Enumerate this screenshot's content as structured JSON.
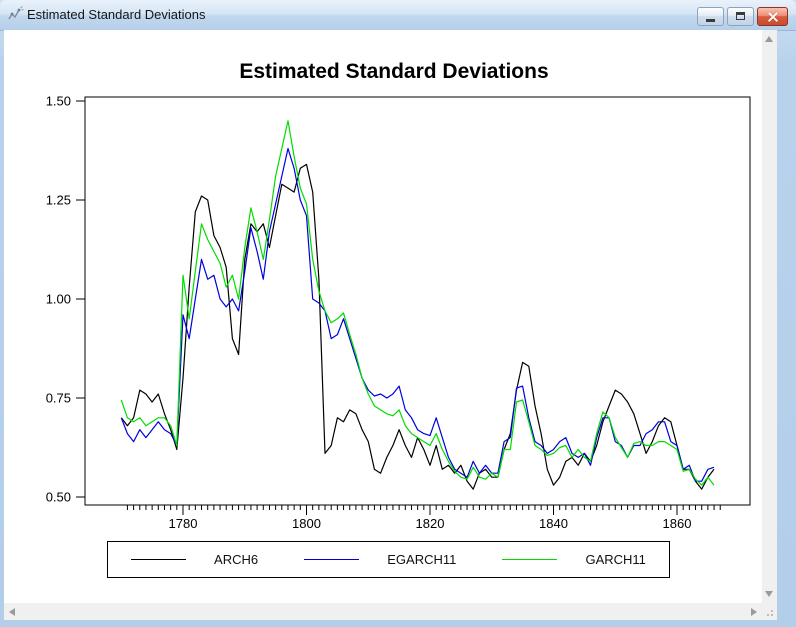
{
  "window": {
    "title": "Estimated Standard Deviations",
    "icon": "graph-icon",
    "controls": [
      "minimize",
      "restore",
      "close"
    ]
  },
  "chart_data": {
    "type": "line",
    "title": "Estimated Standard Deviations",
    "xlabel": "",
    "ylabel": "",
    "x_start": 1770,
    "x_step": 1,
    "x_end": 1866,
    "xlim": [
      1769,
      1868
    ],
    "ylim": [
      0.5,
      1.5
    ],
    "y_ticks": [
      "1.50",
      "1.25",
      "1.00",
      "0.75",
      "0.50"
    ],
    "x_ticks": [
      1780,
      1800,
      1820,
      1840,
      1860
    ],
    "x_minor_tick_range": [
      1771,
      1867
    ],
    "grid": false,
    "legend_position": "bottom",
    "series": [
      {
        "name": "ARCH6",
        "color": "#000000",
        "values": [
          0.7,
          0.68,
          0.7,
          0.77,
          0.76,
          0.74,
          0.76,
          0.71,
          0.67,
          0.62,
          0.8,
          1.03,
          1.22,
          1.26,
          1.25,
          1.16,
          1.13,
          1.08,
          0.9,
          0.86,
          1.1,
          1.19,
          1.17,
          1.19,
          1.13,
          1.21,
          1.29,
          1.28,
          1.27,
          1.33,
          1.34,
          1.27,
          1.05,
          0.61,
          0.63,
          0.7,
          0.69,
          0.72,
          0.71,
          0.67,
          0.64,
          0.57,
          0.56,
          0.6,
          0.63,
          0.67,
          0.63,
          0.6,
          0.65,
          0.62,
          0.58,
          0.63,
          0.57,
          0.58,
          0.56,
          0.58,
          0.54,
          0.52,
          0.56,
          0.57,
          0.55,
          0.55,
          0.62,
          0.66,
          0.77,
          0.84,
          0.83,
          0.73,
          0.66,
          0.57,
          0.53,
          0.55,
          0.59,
          0.6,
          0.58,
          0.61,
          0.59,
          0.63,
          0.69,
          0.73,
          0.77,
          0.76,
          0.74,
          0.71,
          0.66,
          0.61,
          0.64,
          0.68,
          0.7,
          0.69,
          0.63,
          0.57,
          0.57,
          0.54,
          0.52,
          0.55,
          0.57
        ]
      },
      {
        "name": "EGARCH11",
        "color": "#0000dd",
        "values": [
          0.7,
          0.66,
          0.64,
          0.67,
          0.65,
          0.67,
          0.69,
          0.67,
          0.66,
          0.63,
          0.96,
          0.9,
          1.0,
          1.1,
          1.05,
          1.06,
          1.0,
          0.98,
          1.0,
          0.97,
          1.07,
          1.18,
          1.12,
          1.05,
          1.17,
          1.24,
          1.31,
          1.38,
          1.33,
          1.25,
          1.21,
          1.0,
          0.99,
          0.97,
          0.9,
          0.91,
          0.95,
          0.9,
          0.85,
          0.8,
          0.77,
          0.755,
          0.76,
          0.75,
          0.76,
          0.78,
          0.72,
          0.7,
          0.67,
          0.66,
          0.655,
          0.7,
          0.65,
          0.6,
          0.57,
          0.56,
          0.55,
          0.59,
          0.56,
          0.58,
          0.56,
          0.56,
          0.64,
          0.65,
          0.775,
          0.78,
          0.7,
          0.64,
          0.63,
          0.61,
          0.62,
          0.64,
          0.65,
          0.61,
          0.6,
          0.61,
          0.58,
          0.65,
          0.7,
          0.7,
          0.64,
          0.63,
          0.6,
          0.63,
          0.63,
          0.66,
          0.67,
          0.69,
          0.69,
          0.64,
          0.63,
          0.57,
          0.58,
          0.54,
          0.54,
          0.57,
          0.575
        ]
      },
      {
        "name": "GARCH11",
        "color": "#00dc00",
        "values": [
          0.745,
          0.7,
          0.69,
          0.7,
          0.68,
          0.69,
          0.7,
          0.7,
          0.68,
          0.63,
          1.06,
          0.95,
          1.07,
          1.19,
          1.15,
          1.12,
          1.09,
          1.03,
          1.06,
          1.0,
          1.13,
          1.23,
          1.17,
          1.1,
          1.2,
          1.31,
          1.38,
          1.45,
          1.36,
          1.28,
          1.24,
          1.1,
          1.02,
          0.97,
          0.94,
          0.95,
          0.965,
          0.91,
          0.86,
          0.8,
          0.76,
          0.73,
          0.72,
          0.71,
          0.705,
          0.72,
          0.68,
          0.66,
          0.65,
          0.64,
          0.63,
          0.66,
          0.62,
          0.59,
          0.565,
          0.55,
          0.545,
          0.575,
          0.55,
          0.545,
          0.56,
          0.55,
          0.62,
          0.62,
          0.74,
          0.745,
          0.69,
          0.63,
          0.62,
          0.605,
          0.61,
          0.625,
          0.63,
          0.6,
          0.62,
          0.6,
          0.59,
          0.66,
          0.715,
          0.7,
          0.65,
          0.625,
          0.6,
          0.635,
          0.64,
          0.63,
          0.63,
          0.64,
          0.64,
          0.63,
          0.62,
          0.565,
          0.57,
          0.545,
          0.53,
          0.55,
          0.53
        ]
      }
    ]
  }
}
